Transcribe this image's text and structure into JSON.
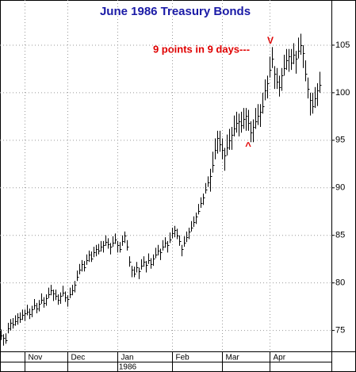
{
  "chart_data": {
    "type": "ohlc",
    "title": "June 1986 Treasury Bonds",
    "annotations": [
      "9 points in 9 days---",
      "V",
      "^"
    ],
    "year_label": "1986",
    "xlim": [
      -0.5,
      139
    ],
    "xticks": [
      {
        "value": 10,
        "label": "Nov"
      },
      {
        "value": 28,
        "label": "Dec"
      },
      {
        "value": 49,
        "label": "Jan"
      },
      {
        "value": 72,
        "label": "Feb"
      },
      {
        "value": 93,
        "label": "Mar"
      },
      {
        "value": 113,
        "label": "Apr"
      }
    ],
    "ylim": [
      72.8,
      109.75
    ],
    "yticks": [
      75,
      80,
      85,
      90,
      95,
      100,
      105
    ],
    "grid": true,
    "color": "#000000",
    "high": [
      75.1,
      74.6,
      74.7,
      75.8,
      76.2,
      76.3,
      76.6,
      76.8,
      76.9,
      77.2,
      77.2,
      77.7,
      77.3,
      77.6,
      78.3,
      77.9,
      78.2,
      78.9,
      78.5,
      78.8,
      79.5,
      79.8,
      79.3,
      79.3,
      78.8,
      79.0,
      79.7,
      79.1,
      78.7,
      79.5,
      79.8,
      80.2,
      81.3,
      82.0,
      82.4,
      82.3,
      83.0,
      83.4,
      83.3,
      83.8,
      84.0,
      84.1,
      84.4,
      84.4,
      85.0,
      84.7,
      84.2,
      84.9,
      85.2,
      84.4,
      84.3,
      85.0,
      85.4,
      84.5,
      82.8,
      81.8,
      81.7,
      82.2,
      81.6,
      82.5,
      82.8,
      82.3,
      83.1,
      82.6,
      83.0,
      83.7,
      84.0,
      83.6,
      84.5,
      84.8,
      84.4,
      85.3,
      85.8,
      86.0,
      85.7,
      85.0,
      84.0,
      84.9,
      85.4,
      85.8,
      86.5,
      87.0,
      87.4,
      88.3,
      89.0,
      89.4,
      90.5,
      91.2,
      92.0,
      93.8,
      95.2,
      96.0,
      96.0,
      95.2,
      94.2,
      95.6,
      96.2,
      96.4,
      97.6,
      98.0,
      97.8,
      98.0,
      98.4,
      98.4,
      98.2,
      97.0,
      97.2,
      98.4,
      98.8,
      98.8,
      100.0,
      101.4,
      101.8,
      103.8,
      104.8,
      102.8,
      102.6,
      101.8,
      102.6,
      104.0,
      104.6,
      104.6,
      104.6,
      105.2,
      104.4,
      105.8,
      106.2,
      105.0,
      103.4,
      101.6,
      100.0,
      100.0,
      100.6,
      101.0,
      102.2
    ],
    "low": [
      74.0,
      73.4,
      73.6,
      74.7,
      75.0,
      75.2,
      75.5,
      75.6,
      75.8,
      76.1,
      76.0,
      76.6,
      76.2,
      76.4,
      77.2,
      76.8,
      77.0,
      77.8,
      77.4,
      77.6,
      78.4,
      78.7,
      78.1,
      78.2,
      77.7,
      77.8,
      78.6,
      78.0,
      77.5,
      78.4,
      78.7,
      79.0,
      80.2,
      80.9,
      81.2,
      81.2,
      81.9,
      82.2,
      82.2,
      82.7,
      82.8,
      83.0,
      83.3,
      83.2,
      83.9,
      83.6,
      83.0,
      83.8,
      84.1,
      83.2,
      83.2,
      83.9,
      84.2,
      83.4,
      81.7,
      80.6,
      80.6,
      81.1,
      80.4,
      81.4,
      81.7,
      81.1,
      82.0,
      81.5,
      81.8,
      82.6,
      82.9,
      82.4,
      83.4,
      83.7,
      83.2,
      84.2,
      84.7,
      84.8,
      84.6,
      83.9,
      82.8,
      83.8,
      84.3,
      84.6,
      85.4,
      85.9,
      86.2,
      87.2,
      87.9,
      88.2,
      89.4,
      90.1,
      89.6,
      91.6,
      93.0,
      93.6,
      93.8,
      93.0,
      91.8,
      93.4,
      94.0,
      94.0,
      95.4,
      95.8,
      95.4,
      95.8,
      96.2,
      96.0,
      96.0,
      94.8,
      94.8,
      96.2,
      96.6,
      96.4,
      97.8,
      99.2,
      99.4,
      101.6,
      102.6,
      100.4,
      100.4,
      99.6,
      100.2,
      101.8,
      102.4,
      102.2,
      102.4,
      103.0,
      102.0,
      103.6,
      104.0,
      102.6,
      101.2,
      99.4,
      97.6,
      97.8,
      98.4,
      98.6,
      100.0
    ],
    "close": [
      74.5,
      74.2,
      74.0,
      75.2,
      75.8,
      75.6,
      76.0,
      76.4,
      76.2,
      76.6,
      76.8,
      77.0,
      76.7,
      77.2,
      77.6,
      77.3,
      77.8,
      78.2,
      77.9,
      78.4,
      78.8,
      79.2,
      78.9,
      78.6,
      78.2,
      78.6,
      79.0,
      78.5,
      78.3,
      78.8,
      79.2,
      79.8,
      80.6,
      81.4,
      82.0,
      81.6,
      82.4,
      83.0,
      82.6,
      83.2,
      83.6,
      83.4,
      83.8,
      84.0,
      84.3,
      84.1,
      83.8,
      84.2,
      84.6,
      84.0,
      83.6,
      84.4,
      85.0,
      83.8,
      82.2,
      81.4,
      81.0,
      81.6,
      81.2,
      81.8,
      82.2,
      81.9,
      82.4,
      82.0,
      82.6,
      83.0,
      83.4,
      83.2,
      83.8,
      84.2,
      84.0,
      84.6,
      85.2,
      85.6,
      85.0,
      84.4,
      83.6,
      84.2,
      84.8,
      85.4,
      85.8,
      86.4,
      87.0,
      87.6,
      88.4,
      89.0,
      89.8,
      90.6,
      91.2,
      92.4,
      94.0,
      95.2,
      94.6,
      94.0,
      93.4,
      94.2,
      95.0,
      95.6,
      96.2,
      96.8,
      97.0,
      96.6,
      97.2,
      97.6,
      96.8,
      95.8,
      96.4,
      97.0,
      97.6,
      98.0,
      98.6,
      100.2,
      101.0,
      102.4,
      103.6,
      102.0,
      101.2,
      100.6,
      101.8,
      102.6,
      103.4,
      103.8,
      103.2,
      104.0,
      103.6,
      104.4,
      105.0,
      104.2,
      102.0,
      100.4,
      99.2,
      98.6,
      99.4,
      100.2,
      100.8
    ]
  }
}
